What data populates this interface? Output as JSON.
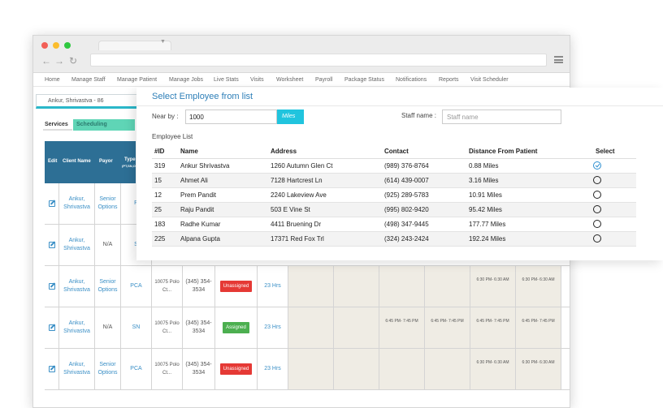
{
  "nav": {
    "items": [
      "Home",
      "Manage Staff",
      "Manage Patient",
      "Manage Jobs",
      "Live Stats",
      "Visits",
      "Worksheet",
      "Payroll",
      "Package Status",
      "Notifications",
      "Reports",
      "Visit Scheduler"
    ]
  },
  "patient_name": "Ankur, Shrivastva - 86",
  "subtabs": {
    "services": "Services",
    "scheduling": "Scheduling"
  },
  "grid": {
    "headers": {
      "edit": "Edit",
      "client": "Client Name",
      "payor": "Payor",
      "type": "Type",
      "type_sub": "(PT,SN,OT)"
    },
    "rows": [
      {
        "client": "Ankur, Shrivastva",
        "payor": "Senior Options",
        "type": "P",
        "address": "",
        "phone": "",
        "status": "",
        "hrs": "",
        "times": []
      },
      {
        "client": "Ankur, Shrivastva",
        "payor": "N/A",
        "type": "S",
        "address": "",
        "phone": "",
        "status": "",
        "hrs": "",
        "times": []
      },
      {
        "client": "Ankur, Shrivastva",
        "payor": "Senior Options",
        "type": "PCA",
        "address": "10075 Polo Ct...",
        "phone": "(345) 354-3534",
        "status": "Unassigned",
        "hrs": "23 Hrs",
        "times": [
          "",
          "",
          "",
          "",
          "6:30 PM- 6:30 AM",
          "6:30 PM- 6:30 AM"
        ]
      },
      {
        "client": "Ankur, Shrivastva",
        "payor": "N/A",
        "type": "SN",
        "address": "10075 Polo Ct...",
        "phone": "(345) 354-3534",
        "status": "Assigned",
        "hrs": "23 Hrs",
        "times": [
          "",
          "",
          "6:45 PM- 7:45 PM",
          "6:45 PM- 7:45 PM",
          "6:45 PM- 7:45 PM",
          "6:45 PM- 7:45 PM"
        ]
      },
      {
        "client": "Ankur, Shrivastva",
        "payor": "Senior Options",
        "type": "PCA",
        "address": "10075 Polo Ct...",
        "phone": "(345) 354-3534",
        "status": "Unassigned",
        "hrs": "23 Hrs",
        "times": [
          "",
          "",
          "",
          "",
          "6:30 PM- 6:30 AM",
          "6:30 PM- 6:30 AM"
        ]
      }
    ]
  },
  "modal": {
    "title": "Select Employee from list",
    "near_by_label": "Near by :",
    "near_by_value": "1000",
    "miles_button": "Miles",
    "staff_name_label": "Staff name :",
    "staff_name_placeholder": "Staff name",
    "list_label": "Employee List",
    "columns": [
      "#ID",
      "Name",
      "Address",
      "Contact",
      "Distance From Patient",
      "Select"
    ],
    "employees": [
      {
        "id": "319",
        "name": "Ankur Shrivastva",
        "address": "1260 Autumn Glen Ct",
        "contact": "(989) 376-8764",
        "distance": "0.88 Miles",
        "selected": true
      },
      {
        "id": "15",
        "name": "Ahmet Ali",
        "address": "7128 Hartcrest Ln",
        "contact": "(614) 439-0007",
        "distance": "3.16 Miles",
        "selected": false
      },
      {
        "id": "12",
        "name": "Prem Pandit",
        "address": "2240 Lakeview Ave",
        "contact": "(925) 289-5783",
        "distance": "10.91 Miles",
        "selected": false
      },
      {
        "id": "25",
        "name": "Raju Pandit",
        "address": "503 E Vine St",
        "contact": "(995) 802-9420",
        "distance": "95.42 Miles",
        "selected": false
      },
      {
        "id": "183",
        "name": "Radhe Kumar",
        "address": "4411 Bruening Dr",
        "contact": "(498) 347-9445",
        "distance": "177.77 Miles",
        "selected": false
      },
      {
        "id": "225",
        "name": "Alpana Gupta",
        "address": "17371 Red Fox Trl",
        "contact": "(324) 243-2424",
        "distance": "192.24 Miles",
        "selected": false
      }
    ]
  },
  "colors": {
    "accent": "#2ab7c9",
    "header_blue": "#2d6f95",
    "assigned": "#4caf50",
    "unassigned": "#e53935",
    "title_blue": "#2e7fb8"
  }
}
